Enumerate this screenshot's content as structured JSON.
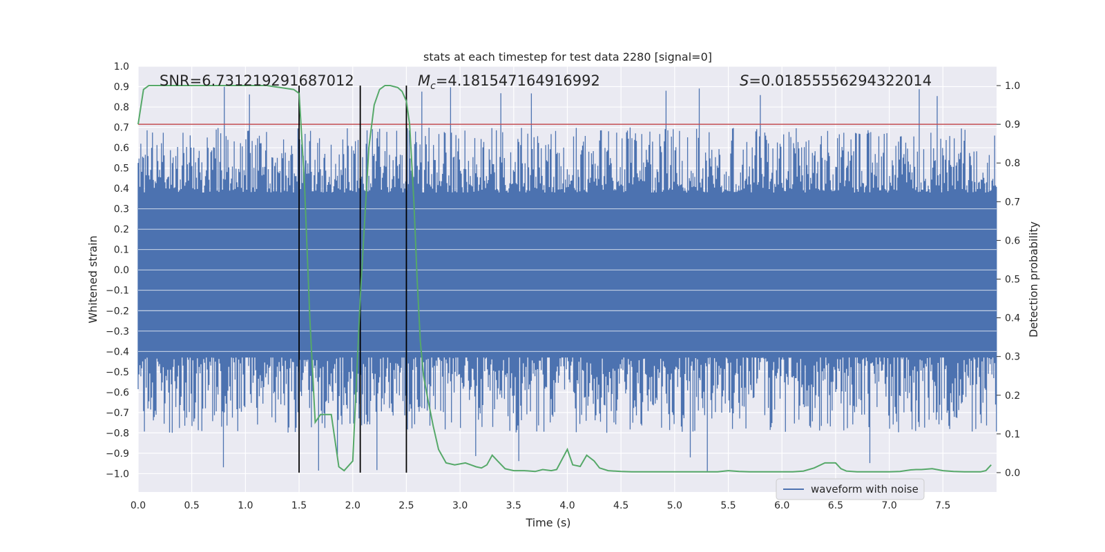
{
  "chart_data": {
    "type": "line",
    "title": "stats at each timestep for test data 2280 [signal=0]",
    "xlabel": "Time (s)",
    "ylabel_left": "Whitened strain",
    "ylabel_right": "Detection probability",
    "xlim": [
      0.0,
      8.0
    ],
    "ylim_left": [
      -1.09,
      1.0
    ],
    "ylim_right": [
      -0.05,
      1.05
    ],
    "x_ticks": [
      "0.0",
      "0.5",
      "1.0",
      "1.5",
      "2.0",
      "2.5",
      "3.0",
      "3.5",
      "4.0",
      "4.5",
      "5.0",
      "5.5",
      "6.0",
      "6.5",
      "7.0",
      "7.5"
    ],
    "y_left_ticks": [
      "1.0",
      "0.9",
      "0.8",
      "0.7",
      "0.6",
      "0.5",
      "0.4",
      "0.3",
      "0.2",
      "0.1",
      "0.0",
      "−0.1",
      "−0.2",
      "−0.3",
      "−0.4",
      "−0.5",
      "−0.6",
      "−0.7",
      "−0.8",
      "−0.9",
      "−1.0"
    ],
    "y_right_ticks": [
      "1.0",
      "0.9",
      "0.8",
      "0.7",
      "0.6",
      "0.5",
      "0.4",
      "0.3",
      "0.2",
      "0.1",
      "0.0"
    ],
    "annotations": {
      "snr": "SNR=6.731219291687012",
      "mc_symbol": "M",
      "mc_sub": "c",
      "mc_value": "=4.181547164916992",
      "s_symbol": "S",
      "s_value": "=0.01855556294322014"
    },
    "threshold": {
      "value": 0.9,
      "axis": "right",
      "color": "#c44e52"
    },
    "vertical_lines": [
      1.5,
      2.07,
      2.5
    ],
    "legend": {
      "label": "waveform with noise",
      "placement": "lower-right"
    },
    "waveform": {
      "name": "waveform with noise",
      "color": "#4c72b0",
      "band": [
        -0.42,
        0.38
      ],
      "peak_range": [
        -1.0,
        0.9
      ]
    },
    "series": [
      {
        "name": "Detection probability",
        "axis": "right",
        "color": "#55a868",
        "x": [
          0.0,
          0.05,
          0.1,
          0.2,
          0.3,
          0.5,
          0.8,
          1.0,
          1.2,
          1.45,
          1.5,
          1.55,
          1.6,
          1.65,
          1.7,
          1.75,
          1.8,
          1.87,
          1.92,
          2.0,
          2.07,
          2.15,
          2.2,
          2.25,
          2.3,
          2.35,
          2.42,
          2.46,
          2.5,
          2.53,
          2.57,
          2.6,
          2.63,
          2.66,
          2.7,
          2.75,
          2.8,
          2.87,
          2.95,
          3.05,
          3.1,
          3.15,
          3.2,
          3.25,
          3.3,
          3.35,
          3.42,
          3.5,
          3.6,
          3.7,
          3.77,
          3.85,
          3.9,
          4.0,
          4.05,
          4.12,
          4.18,
          4.25,
          4.3,
          4.38,
          4.5,
          4.6,
          4.7,
          4.8,
          4.9,
          5.0,
          5.1,
          5.2,
          5.3,
          5.4,
          5.5,
          5.6,
          5.7,
          5.8,
          5.9,
          6.0,
          6.1,
          6.2,
          6.3,
          6.4,
          6.5,
          6.55,
          6.6,
          6.7,
          6.8,
          6.9,
          7.0,
          7.1,
          7.2,
          7.25,
          7.3,
          7.4,
          7.5,
          7.6,
          7.7,
          7.8,
          7.85,
          7.9,
          7.95
        ],
        "y": [
          0.9,
          0.99,
          1.0,
          1.0,
          1.0,
          1.0,
          1.0,
          1.0,
          1.0,
          0.99,
          0.98,
          0.75,
          0.4,
          0.13,
          0.15,
          0.15,
          0.15,
          0.015,
          0.005,
          0.03,
          0.45,
          0.84,
          0.95,
          0.99,
          1.0,
          1.0,
          0.995,
          0.985,
          0.96,
          0.9,
          0.7,
          0.5,
          0.34,
          0.25,
          0.19,
          0.12,
          0.06,
          0.025,
          0.02,
          0.025,
          0.02,
          0.015,
          0.012,
          0.02,
          0.045,
          0.03,
          0.01,
          0.005,
          0.005,
          0.003,
          0.008,
          0.005,
          0.008,
          0.06,
          0.02,
          0.016,
          0.045,
          0.03,
          0.012,
          0.005,
          0.003,
          0.002,
          0.002,
          0.002,
          0.002,
          0.002,
          0.002,
          0.002,
          0.002,
          0.002,
          0.005,
          0.003,
          0.002,
          0.002,
          0.002,
          0.002,
          0.002,
          0.004,
          0.012,
          0.025,
          0.025,
          0.01,
          0.004,
          0.002,
          0.002,
          0.002,
          0.002,
          0.003,
          0.007,
          0.008,
          0.008,
          0.01,
          0.005,
          0.003,
          0.002,
          0.002,
          0.002,
          0.005,
          0.02
        ]
      }
    ]
  }
}
